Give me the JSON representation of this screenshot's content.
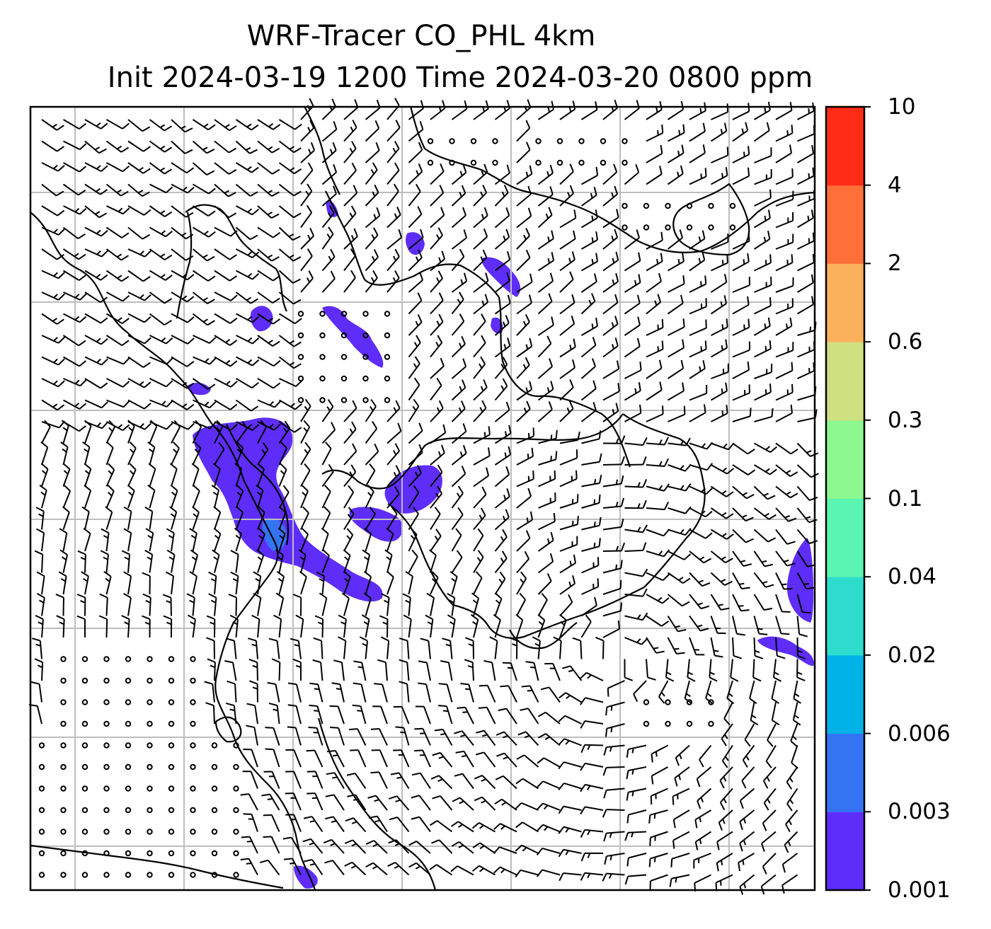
{
  "title": {
    "line1": "WRF-Tracer CO_PHL 4km",
    "line2": "Init 2024-03-19 1200 Time 2024-03-20 0800 ppm"
  },
  "colorbar": {
    "levels": [
      "0.001",
      "0.003",
      "0.006",
      "0.02",
      "0.04",
      "0.1",
      "0.3",
      "0.6",
      "2",
      "4",
      "10"
    ],
    "colors": [
      "#5e2dfa",
      "#3474f3",
      "#00b2e8",
      "#2ddccd",
      "#5af5b2",
      "#8cf88f",
      "#cfe080",
      "#fbb05c",
      "#fe6f3a",
      "#fe2b17"
    ]
  },
  "map": {
    "style": {
      "frame_color": "#000000",
      "gridline_color": "#bdbdbd",
      "coastline_color": "#000000",
      "barb_color": "#000000"
    },
    "tracer_fill_color": "#5e2dfa",
    "tracer_peak_color": "#3474f3",
    "wind_barbs": "wind barbs with calm circles over the map domain"
  }
}
